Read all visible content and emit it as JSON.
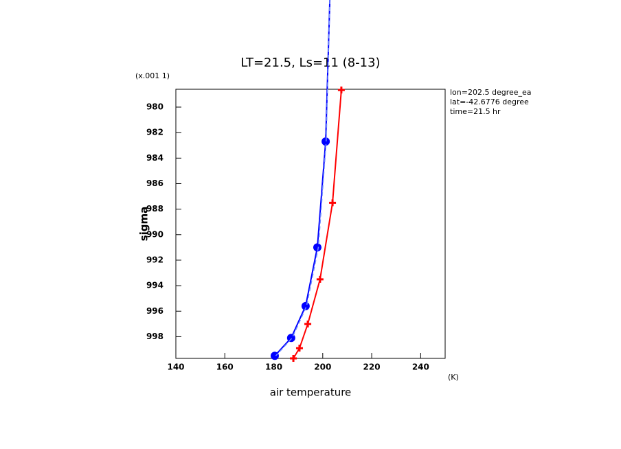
{
  "chart_data": {
    "type": "line",
    "title": "LT=21.5, Ls=11 (8-13)",
    "x_label": "air temperature",
    "x_unit": "(K)",
    "y_label": "sigma",
    "y_unit": "(x.001 1)",
    "annotations": [
      "lon=202.5 degree_ea",
      "lat=-42.6776 degree",
      "time=21.5 hr"
    ],
    "xlim": [
      140,
      250
    ],
    "xticks": [
      140,
      160,
      180,
      200,
      220,
      240
    ],
    "ylim": [
      999.7,
      978.6
    ],
    "yticks": [
      980,
      982,
      984,
      986,
      988,
      990,
      992,
      994,
      996,
      998
    ],
    "series": [
      {
        "color": "#ff0000",
        "marker": "plus",
        "dashed": false,
        "x": [
          207.6,
          204.0,
          198.9,
          193.9,
          190.5,
          188.0
        ],
        "values": [
          978.66,
          987.5,
          993.5,
          997.0,
          998.9,
          999.7
        ]
      },
      {
        "color": "#0000ff",
        "marker": "circle",
        "dashed": false,
        "x": [
          202.9,
          201.2,
          197.8,
          193.0,
          187.1,
          180.4
        ],
        "values": [
          971.6,
          982.7,
          991.0,
          995.6,
          998.1,
          999.5
        ]
      },
      {
        "color": "#6f8cff",
        "marker": "none",
        "dashed": true,
        "x": [
          202.9,
          201.4,
          198.2,
          193.4,
          187.5,
          180.8
        ],
        "values": [
          971.6,
          982.7,
          991.0,
          995.6,
          998.1,
          999.5
        ]
      }
    ]
  }
}
